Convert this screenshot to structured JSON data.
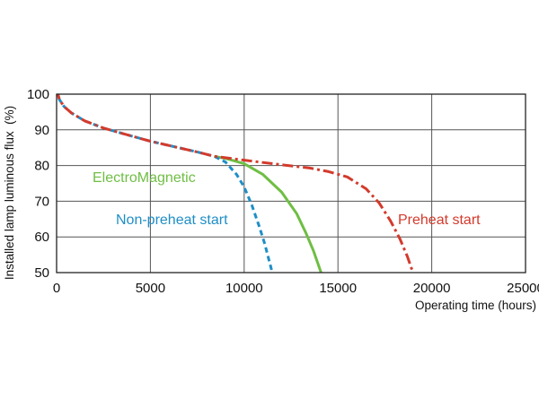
{
  "chart_data": {
    "type": "line",
    "xlabel": "Operating time (hours)",
    "ylabel": "Installed lamp luminous flux  (%)",
    "xlim": [
      0,
      25000
    ],
    "ylim": [
      50,
      100
    ],
    "x_ticks": [
      0,
      5000,
      10000,
      15000,
      20000,
      25000
    ],
    "y_ticks": [
      50,
      60,
      70,
      80,
      90,
      100
    ],
    "x_tick_labels": [
      "0",
      "5000",
      "10000",
      "15000",
      "20000",
      "25000"
    ],
    "y_tick_labels": [
      "50",
      "60",
      "70",
      "80",
      "90",
      "100"
    ],
    "grid": true,
    "legend": "inline-labels",
    "series": [
      {
        "name": "ElectroMagnetic",
        "color": "#6fbe44",
        "style": "solid",
        "x": [
          8400,
          9000,
          10000,
          11000,
          12000,
          12800,
          13300,
          13700,
          14100
        ],
        "y": [
          82.6,
          82.0,
          80.5,
          77.5,
          72.5,
          66.5,
          61.0,
          56.0,
          50.0
        ]
      },
      {
        "name": "Non-preheat start",
        "color": "#1f8ec6",
        "style": "dashed",
        "x": [
          0,
          150,
          400,
          800,
          1500,
          2500,
          3500,
          5000,
          6500,
          7500,
          8400,
          9000,
          9600,
          10000,
          10400,
          10800,
          11100,
          11300,
          11500
        ],
        "y": [
          101.5,
          98.5,
          96.5,
          94.7,
          92.5,
          90.5,
          89.0,
          86.8,
          85.0,
          83.8,
          82.6,
          81.0,
          77.5,
          74.0,
          69.0,
          63.0,
          58.0,
          54.0,
          50.0
        ]
      },
      {
        "name": "Preheat start",
        "color": "#d33a2c",
        "style": "dash-dot",
        "x": [
          0,
          150,
          400,
          800,
          1500,
          2500,
          3500,
          5000,
          6500,
          7500,
          8400,
          10000,
          12000,
          13500,
          14500,
          15500,
          16500,
          17200,
          17800,
          18300,
          18700,
          19000
        ],
        "y": [
          101.5,
          98.5,
          96.5,
          94.7,
          92.5,
          90.5,
          89.0,
          86.8,
          85.0,
          83.8,
          82.6,
          81.5,
          80.2,
          79.3,
          78.3,
          76.8,
          73.5,
          69.5,
          64.5,
          59.5,
          54.5,
          50.0
        ]
      }
    ]
  }
}
